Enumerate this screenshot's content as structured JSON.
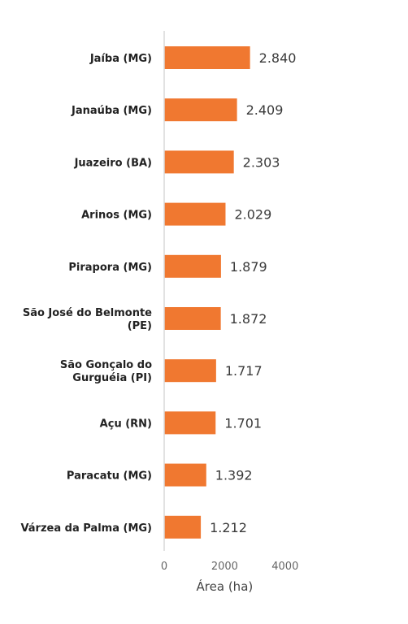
{
  "chart_data": {
    "type": "bar",
    "orientation": "horizontal",
    "categories": [
      [
        "Jaíba (MG)"
      ],
      [
        "Janaúba (MG)"
      ],
      [
        "Juazeiro (BA)"
      ],
      [
        "Arinos (MG)"
      ],
      [
        "Pirapora (MG)"
      ],
      [
        "São José do Belmonte",
        "(PE)"
      ],
      [
        "São Gonçalo do",
        "Gurguéia (PI)"
      ],
      [
        "Açu (RN)"
      ],
      [
        "Paracatu (MG)"
      ],
      [
        "Várzea da Palma (MG)"
      ]
    ],
    "values": [
      2840,
      2409,
      2303,
      2029,
      1879,
      1872,
      1717,
      1701,
      1392,
      1212
    ],
    "value_labels": [
      "2.840",
      "2.409",
      "2.303",
      "2.029",
      "1.879",
      "1.872",
      "1.717",
      "1.701",
      "1.392",
      "1.212"
    ],
    "xlabel": "Área (ha)",
    "xlim": [
      0,
      4000
    ],
    "xticks": [
      0,
      2000,
      4000
    ],
    "xtick_labels": [
      "0",
      "2000",
      "4000"
    ],
    "grid": false,
    "bar_color": "#F07830",
    "axis_color": "#d9d9d9"
  }
}
